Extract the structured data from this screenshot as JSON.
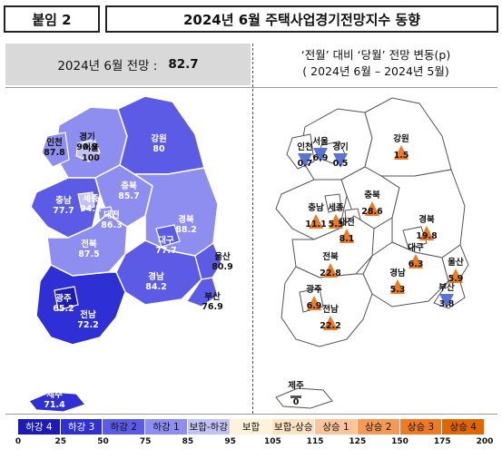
{
  "header": {
    "tag": "붙임 2",
    "title": "2024년 6월 주택사업경기전망지수 동향"
  },
  "left_panel": {
    "heading_text": "2024년 6월 전망 :",
    "heading_value": "82.7"
  },
  "right_panel": {
    "heading_line1": "‘전월’ 대비 ‘당월’ 전망 변동(p)",
    "heading_line2": "( 2024년 6월 –   2024년 5월)"
  },
  "regions": [
    {
      "name": "인천",
      "index": "87.8",
      "change": "0.7",
      "direction": "down"
    },
    {
      "name": "경기",
      "index": "90.9",
      "change": "0.5",
      "direction": "down"
    },
    {
      "name": "서울",
      "index": "100",
      "change": "6.9",
      "direction": "down"
    },
    {
      "name": "강원",
      "index": "80",
      "change": "1.5",
      "direction": "up"
    },
    {
      "name": "충남",
      "index": "77.7",
      "change": "11.1",
      "direction": "up"
    },
    {
      "name": "세종",
      "index": "94.1",
      "change": "5.3",
      "direction": "up"
    },
    {
      "name": "충북",
      "index": "85.7",
      "change": "28.6",
      "direction": "up"
    },
    {
      "name": "대전",
      "index": "86.3",
      "change": "8.1",
      "direction": "up"
    },
    {
      "name": "경북",
      "index": "88.2",
      "change": "19.8",
      "direction": "up"
    },
    {
      "name": "대구",
      "index": "77.7",
      "change": "6.3",
      "direction": "up"
    },
    {
      "name": "전북",
      "index": "87.5",
      "change": "22.8",
      "direction": "up"
    },
    {
      "name": "울산",
      "index": "80.9",
      "change": "5.9",
      "direction": "up"
    },
    {
      "name": "경남",
      "index": "84.2",
      "change": "5.3",
      "direction": "up"
    },
    {
      "name": "광주",
      "index": "65.2",
      "change": "6.9",
      "direction": "up"
    },
    {
      "name": "전남",
      "index": "72.2",
      "change": "22.2",
      "direction": "up"
    },
    {
      "name": "부산",
      "index": "76.9",
      "change": "3.8",
      "direction": "down"
    },
    {
      "name": "제주",
      "index": "71.4",
      "change": "0",
      "direction": "flat"
    }
  ],
  "legend": {
    "items": [
      {
        "label": "하강 4",
        "color": "#1c1cb4",
        "text_color": "#ffffff"
      },
      {
        "label": "하강 3",
        "color": "#2f2fd6",
        "text_color": "#ffffff"
      },
      {
        "label": "하강 2",
        "color": "#5b5be6",
        "text_color": "#111111"
      },
      {
        "label": "하강 1",
        "color": "#8e8ef0",
        "text_color": "#111111"
      },
      {
        "label": "보합-하강",
        "color": "#c2c2f4",
        "text_color": "#111111"
      },
      {
        "label": "보합",
        "color": "#fdf3d8",
        "text_color": "#111111"
      },
      {
        "label": "보합-상승",
        "color": "#fde3c0",
        "text_color": "#111111"
      },
      {
        "label": "상승 1",
        "color": "#fbc49a",
        "text_color": "#111111"
      },
      {
        "label": "상승 2",
        "color": "#f59a55",
        "text_color": "#111111"
      },
      {
        "label": "상승 3",
        "color": "#ef7a22",
        "text_color": "#111111"
      },
      {
        "label": "상승 4",
        "color": "#e26600",
        "text_color": "#111111"
      }
    ],
    "ticks": [
      "0",
      "25",
      "50",
      "75",
      "85",
      "95",
      "105",
      "115",
      "125",
      "150",
      "175",
      "200"
    ]
  },
  "colors": {
    "up_arrow": "#ef7a22",
    "down_arrow": "#5b73d6",
    "flat_mark": "#555555"
  }
}
